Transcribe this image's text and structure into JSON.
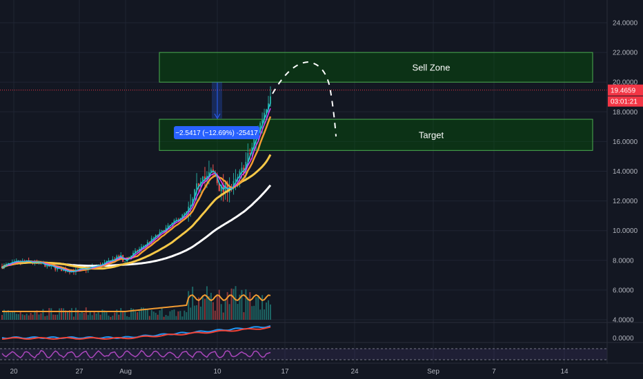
{
  "chart_data": {
    "type": "candlestick",
    "y_axis": {
      "ticks": [
        "24.0000",
        "22.0000",
        "20.0000",
        "18.0000",
        "16.0000",
        "14.0000",
        "12.0000",
        "10.0000",
        "8.0000",
        "6.0000",
        "4.0000"
      ],
      "range": [
        4,
        24.5
      ]
    },
    "x_axis": {
      "ticks": [
        "20",
        "27",
        "Aug",
        "10",
        "17",
        "24",
        "Sep",
        "7",
        "14"
      ]
    },
    "current_price": {
      "label": "19.4659",
      "value": 19.4659,
      "color": "#f23645"
    },
    "countdown": {
      "label": "03:01:21",
      "color": "#f23645"
    },
    "zones": [
      {
        "name": "Sell Zone",
        "low": 20.0,
        "high": 22.0,
        "color": "#4caf50"
      },
      {
        "name": "Target",
        "low": 15.4,
        "high": 17.5,
        "color": "#4caf50"
      }
    ],
    "measure": {
      "label": "−2.5417 (−12.69%) -25417",
      "color": "#2962ff"
    },
    "indicator_panes": [
      {
        "axis_label": "0.0000"
      }
    ],
    "colors": {
      "up": "#26a69a",
      "down": "#ef5350",
      "ma_white": "#ffffff",
      "ma_yellow": "#f7c948",
      "ma_orange": "#f39c32"
    }
  }
}
